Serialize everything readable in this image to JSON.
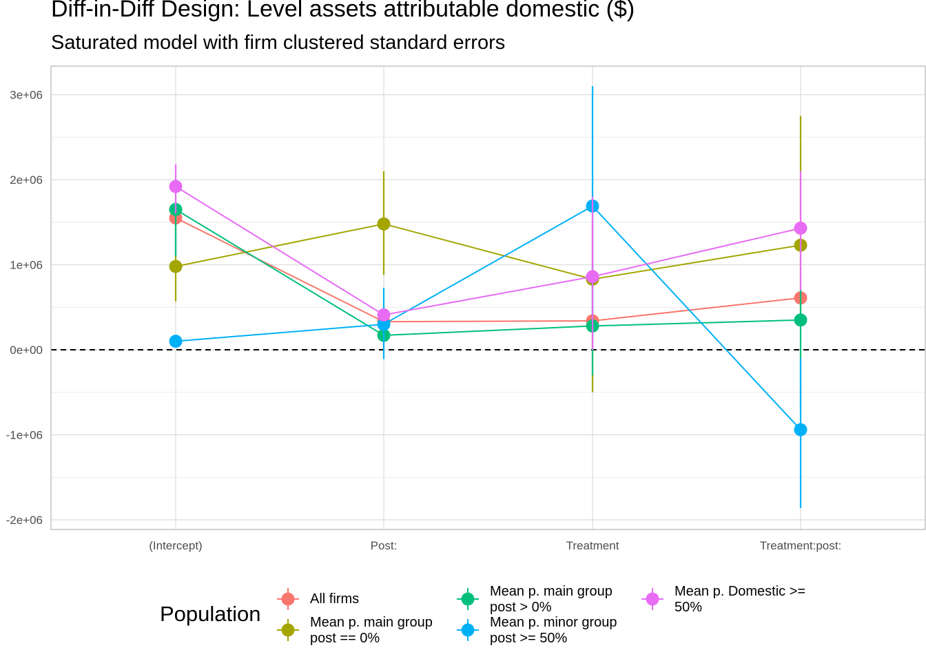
{
  "title": "Diff-in-Diff Design: Level assets attributable domestic  ($)",
  "subtitle": "Saturated model with firm clustered standard errors",
  "chart_data": {
    "type": "line",
    "categories": [
      "(Intercept)",
      "Post:",
      "Treatment",
      "Treatment:post:"
    ],
    "ylim": [
      -2100000,
      3300000
    ],
    "y_ticks": [
      -2000000,
      -1000000,
      0,
      1000000,
      2000000,
      3000000
    ],
    "y_tick_labels": [
      "-2e+06",
      "-1e+06",
      "0e+00",
      "1e+06",
      "2e+06",
      "3e+06"
    ],
    "reference_line": 0,
    "grid": true,
    "legend_title": "Population",
    "legend_position": "bottom",
    "series": [
      {
        "name": "All firms",
        "color": "#F8766D",
        "values": [
          1550000,
          330000,
          340000,
          610000
        ],
        "lower": [
          1550000,
          330000,
          340000,
          610000
        ],
        "upper": [
          1550000,
          330000,
          340000,
          610000
        ]
      },
      {
        "name": "Mean p. main group\npost == 0%",
        "color": "#A3A500",
        "values": [
          980000,
          1480000,
          830000,
          1230000
        ],
        "lower": [
          570000,
          880000,
          -500000,
          300000
        ],
        "upper": [
          1650000,
          2100000,
          1500000,
          2750000
        ]
      },
      {
        "name": "Mean p. main group\npost > 0%",
        "color": "#00BF7D",
        "values": [
          1650000,
          170000,
          280000,
          350000
        ],
        "lower": [
          1100000,
          170000,
          -300000,
          -700000
        ],
        "upper": [
          1750000,
          170000,
          1000000,
          700000
        ]
      },
      {
        "name": "Mean p. minor group\npost >= 50%",
        "color": "#00B0F6",
        "values": [
          100000,
          300000,
          1690000,
          -940000
        ],
        "lower": [
          30000,
          -110000,
          300000,
          -1860000
        ],
        "upper": [
          150000,
          730000,
          3100000,
          -100000
        ]
      },
      {
        "name": "Mean p. Domestic >=\n50%",
        "color": "#E76BF3",
        "values": [
          1920000,
          410000,
          860000,
          1430000
        ],
        "lower": [
          1600000,
          410000,
          0,
          700000
        ],
        "upper": [
          2180000,
          410000,
          1800000,
          2100000
        ]
      }
    ]
  }
}
